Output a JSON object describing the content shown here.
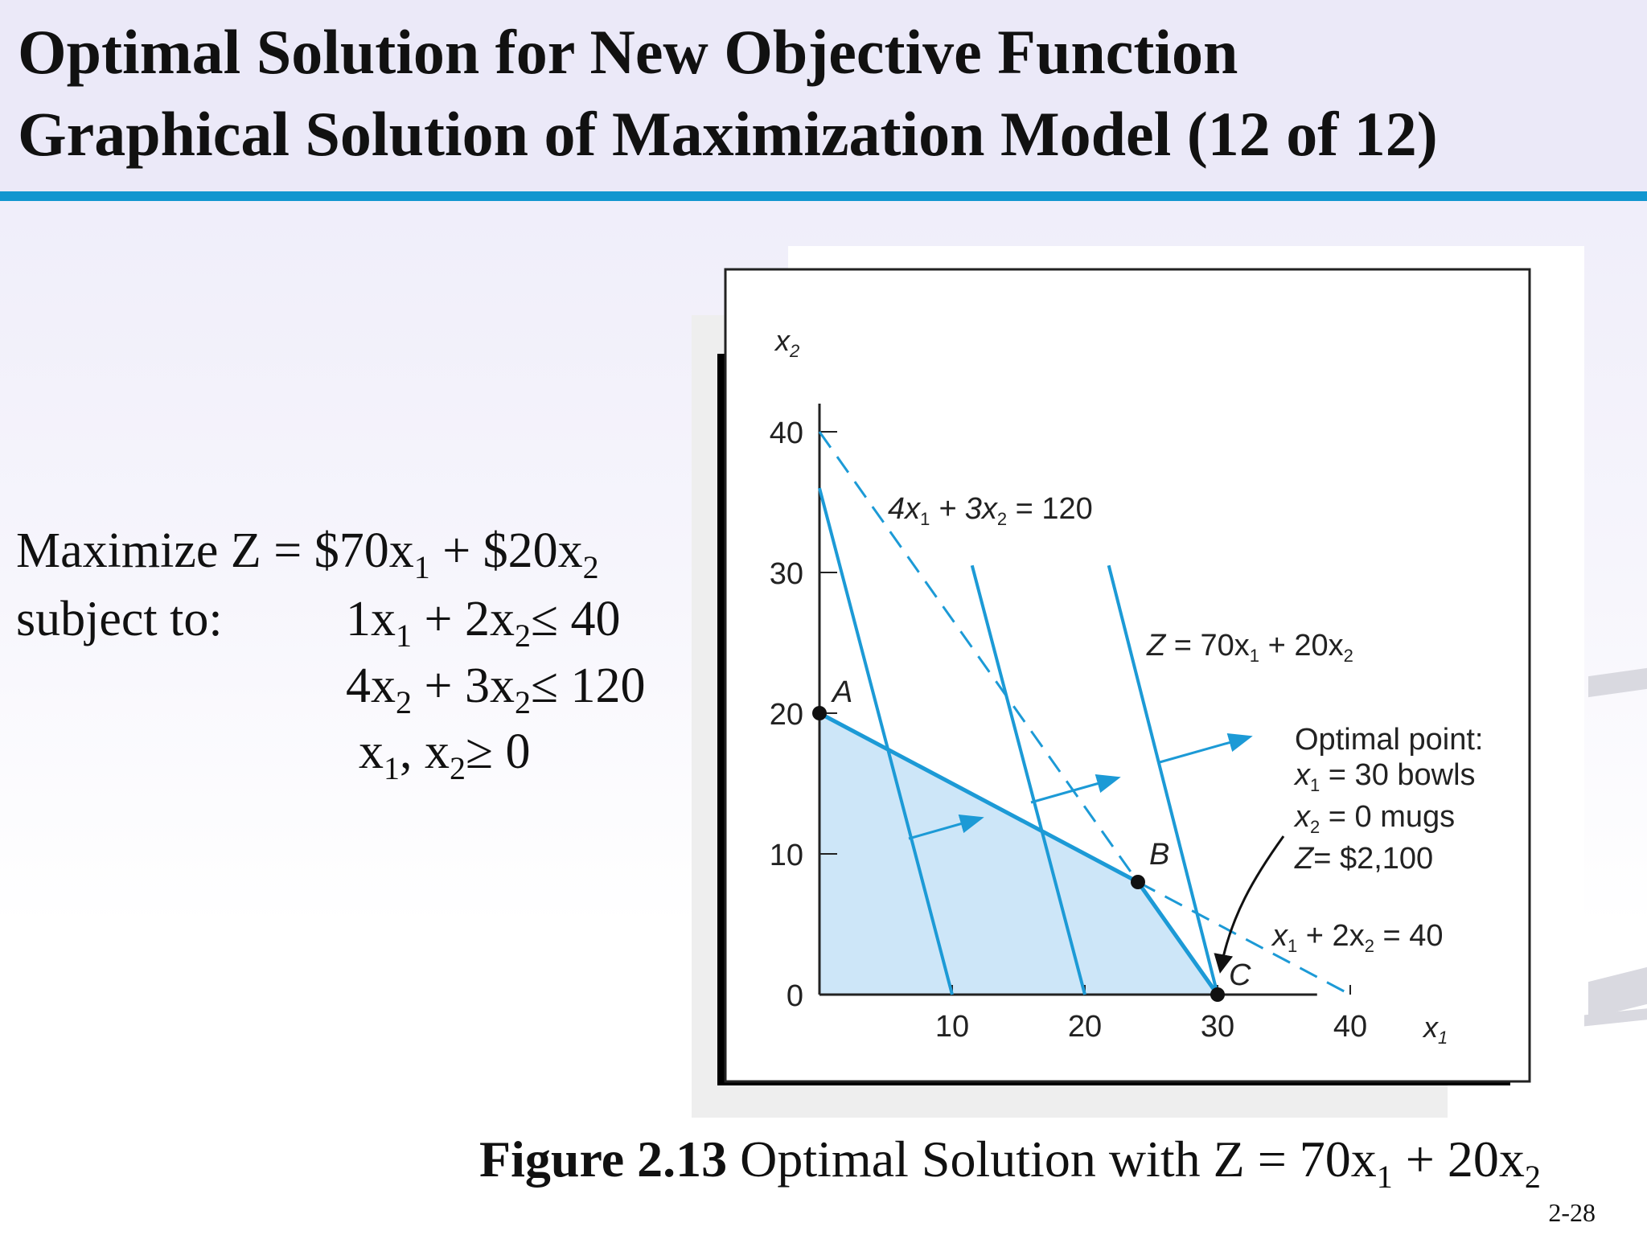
{
  "title": {
    "line1": "Optimal Solution for New Objective Function",
    "line2": "Graphical Solution of  Maximization Model (12 of  12)"
  },
  "model": {
    "objective_prefix": "Maximize Z = $70x",
    "objective_mid": " + $20x",
    "subject_to": "subject to:",
    "c1_a": "1x",
    "c1_b": " + 2x",
    "c1_c": "≤ 40",
    "c2_a": "4x",
    "c2_b": " + 3x",
    "c2_c": "≤ 120",
    "c3_a": "x",
    "c3_b": ", x",
    "c3_c": "≥ 0",
    "sub1": "1",
    "sub2": "2"
  },
  "figure": {
    "x_axis_symbol": "x",
    "y_axis_symbol": "x",
    "axis_sub_1": "1",
    "axis_sub_2": "2",
    "x_ticks": [
      "10",
      "20",
      "30",
      "40"
    ],
    "y_ticks": [
      "0",
      "10",
      "20",
      "30",
      "40"
    ],
    "label_constraint_labor": "4x",
    "label_constraint_labor_rest": " + 3x",
    "label_constraint_labor_rhs": " = 120",
    "label_objective_z": "Z",
    "label_objective_rest": " = 70x",
    "label_objective_rest2": " + 20x",
    "label_constraint_clay": "x",
    "label_constraint_clay_rest": " + 2x",
    "label_constraint_clay_rhs": " = 40",
    "point_a": "A",
    "point_b": "B",
    "point_c": "C",
    "optimal_title": "Optimal point:",
    "optimal_x1_rest": " = 30 bowls",
    "optimal_x2_rest": " = 0 mugs",
    "optimal_z_rest": "= $2,100",
    "colors": {
      "line": "#1c9ad6",
      "feasible_fill": "#cde6f8",
      "axis": "#222222"
    }
  },
  "chart_data": {
    "type": "line",
    "xlabel": "x1",
    "ylabel": "x2",
    "xlim": [
      0,
      42
    ],
    "ylim": [
      0,
      42
    ],
    "x_ticks": [
      10,
      20,
      30,
      40
    ],
    "y_ticks": [
      0,
      10,
      20,
      30,
      40
    ],
    "feasible_region": [
      [
        0,
        0
      ],
      [
        0,
        20
      ],
      [
        24,
        8
      ],
      [
        30,
        0
      ]
    ],
    "constraints": [
      {
        "name": "x1 + 2x2 = 40",
        "points": [
          [
            0,
            20
          ],
          [
            24,
            8
          ]
        ]
      },
      {
        "name": "4x1 + 3x2 = 120",
        "points": [
          [
            0,
            40
          ],
          [
            30,
            0
          ]
        ],
        "style": "dashed"
      }
    ],
    "objective_lines": [
      {
        "points": [
          [
            0,
            36
          ],
          [
            10,
            0
          ]
        ]
      },
      {
        "points": [
          [
            11.5,
            30.5
          ],
          [
            20,
            0
          ]
        ]
      },
      {
        "points": [
          [
            21.8,
            30.5
          ],
          [
            30,
            0
          ]
        ]
      }
    ],
    "points": [
      {
        "label": "A",
        "x": 0,
        "y": 20
      },
      {
        "label": "B",
        "x": 24,
        "y": 8
      },
      {
        "label": "C",
        "x": 30,
        "y": 0
      }
    ],
    "optimal": {
      "x1": 30,
      "x2": 0,
      "Z": 2100
    }
  },
  "caption": {
    "bold": "Figure 2.13",
    "text": " Optimal Solution with Z = 70x",
    "text_mid": " + 20x",
    "sub1": "1",
    "sub2": "2"
  },
  "slide_number": "2-28"
}
